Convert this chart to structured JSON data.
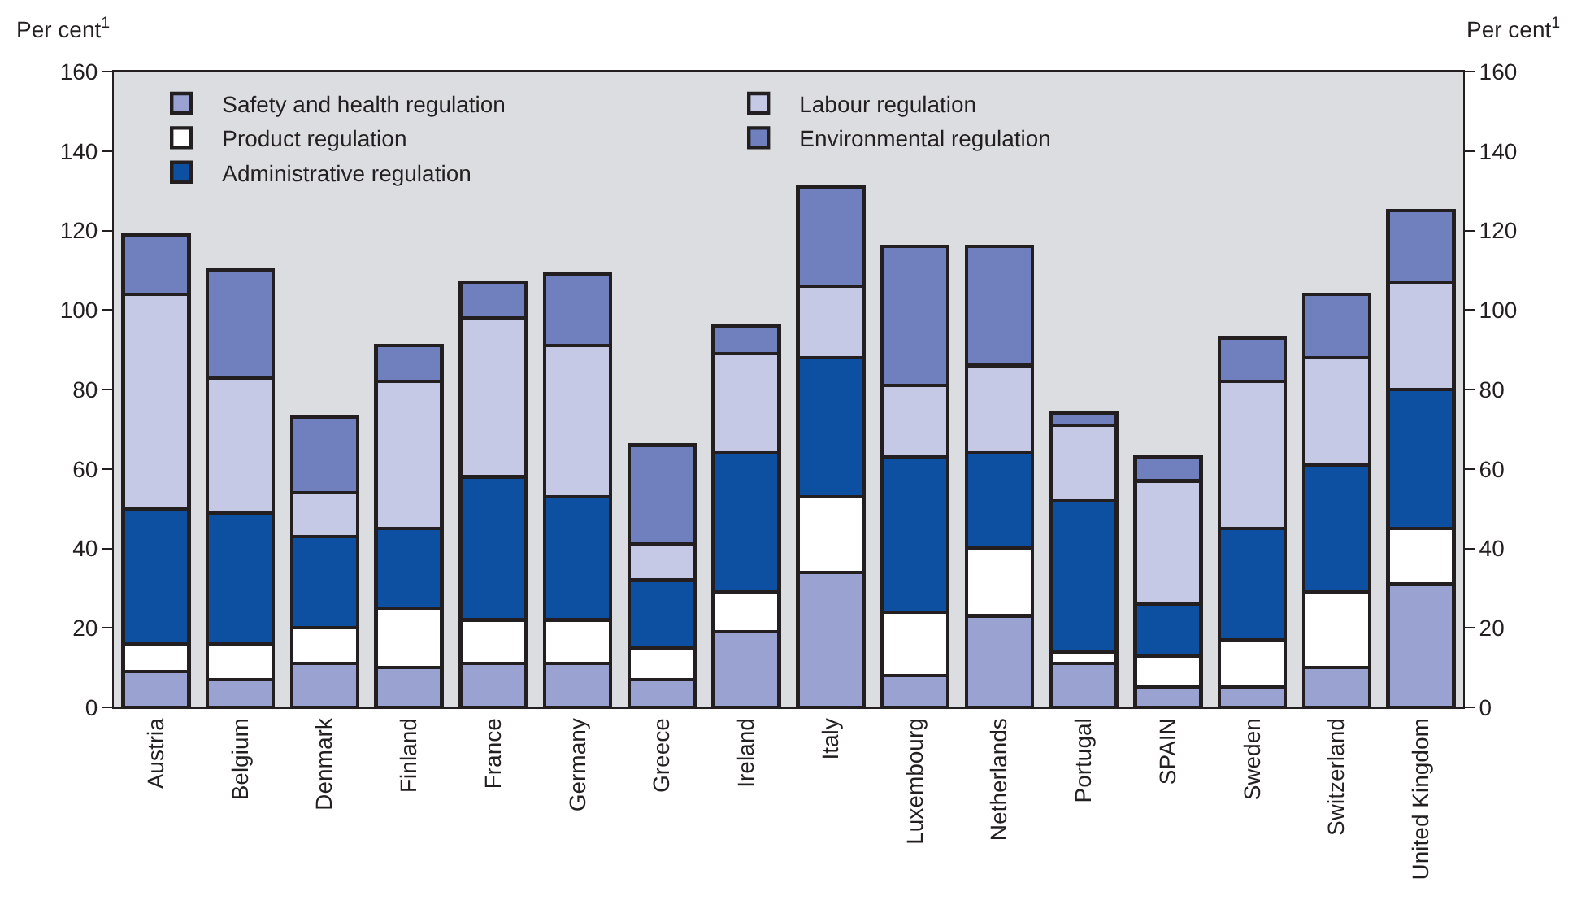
{
  "chart_data": {
    "type": "bar",
    "stacked": true,
    "ylabel": "Per cent$^{1}$",
    "y2label": "Per cent$^{1}$",
    "categories": [
      "Austria",
      "Belgium",
      "Denmark",
      "Finland",
      "France",
      "Germany",
      "Greece",
      "Ireland",
      "Italy",
      "Luxembourg",
      "Netherlands",
      "Portugal",
      "SPAIN",
      "Sweden",
      "Switzerland",
      "United Kingdom"
    ],
    "series": [
      {
        "name": "Safety and health regulation",
        "color": "#9aa2d2",
        "values": [
          9,
          7,
          11,
          10,
          11,
          11,
          7,
          19,
          34,
          8,
          23,
          11,
          5,
          5,
          10,
          31
        ]
      },
      {
        "name": "Product regulation",
        "color": "#ffffff",
        "values": [
          7,
          9,
          9,
          15,
          11,
          11,
          8,
          10,
          19,
          16,
          17,
          3,
          8,
          12,
          19,
          14
        ]
      },
      {
        "name": "Administrative regulation",
        "color": "#0d4fa0",
        "values": [
          34,
          33,
          23,
          20,
          36,
          31,
          17,
          35,
          35,
          39,
          24,
          38,
          13,
          28,
          32,
          35
        ]
      },
      {
        "name": "Labour regulation",
        "color": "#c6c9e6",
        "values": [
          54,
          34,
          11,
          37,
          40,
          38,
          9,
          25,
          18,
          18,
          22,
          19,
          31,
          37,
          27,
          27
        ]
      },
      {
        "name": "Environmental regulation",
        "color": "#7080bf",
        "values": [
          15,
          27,
          19,
          9,
          9,
          18,
          25,
          7,
          25,
          35,
          30,
          3,
          6,
          11,
          16,
          18
        ]
      }
    ],
    "ylim": [
      0,
      160
    ],
    "yticks": [
      0,
      20,
      40,
      60,
      80,
      100,
      120,
      140,
      160
    ],
    "y2lim": [
      0,
      160
    ],
    "y2ticks": [
      0,
      20,
      40,
      60,
      80,
      100,
      120,
      140,
      160
    ],
    "legend": "top left",
    "grid": false
  }
}
